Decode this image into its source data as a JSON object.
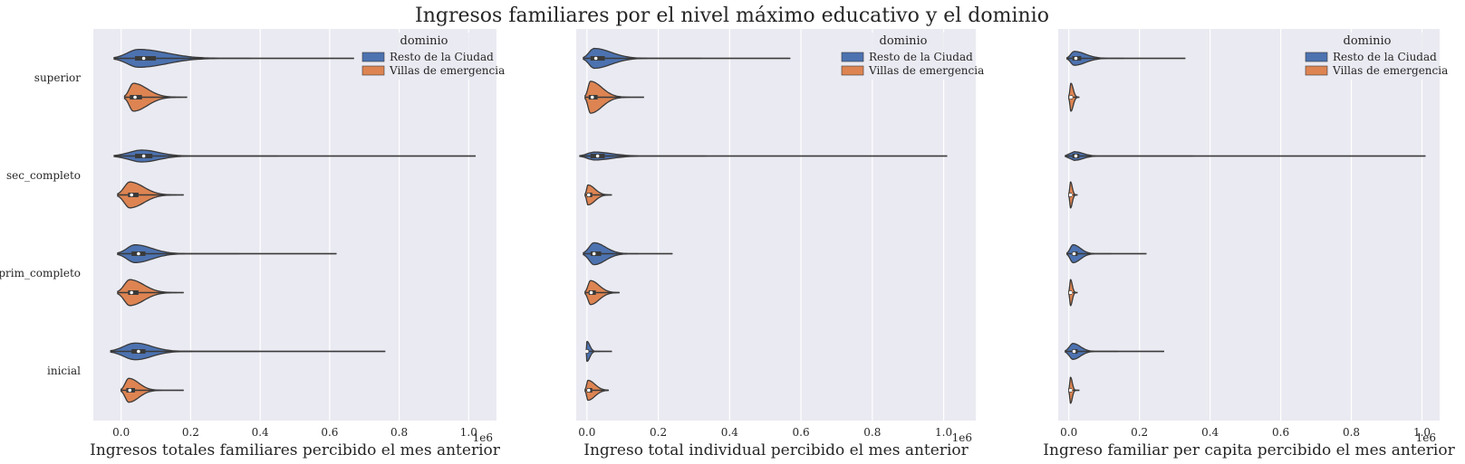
{
  "title": "Ingresos familiares por el nivel máximo educativo y el dominio",
  "colors": {
    "Resto de la Ciudad": "#4c72b0",
    "Villas de emergencia": "#dd8452",
    "background": "#eaeaf2",
    "grid": "#ffffff"
  },
  "chart_data": [
    {
      "type": "violin",
      "xlabel": "Ingresos totales familiares percibido el mes anterior",
      "x_offset_label": "1e6",
      "xlim": [
        -0.08,
        1.08
      ],
      "xticks": [
        0.0,
        0.2,
        0.4,
        0.6,
        0.8,
        1.0
      ],
      "xtick_labels": [
        "0.0",
        "0.2",
        "0.4",
        "0.6",
        "0.8",
        "1.0"
      ],
      "categories": [
        "superior",
        "sec_completo",
        "prim_completo",
        "inicial"
      ],
      "legend": {
        "title": "dominio",
        "entries": [
          "Resto de la Ciudad",
          "Villas de emergencia"
        ],
        "placement": "upper right"
      },
      "series": [
        {
          "name": "Resto de la Ciudad",
          "violins": [
            {
              "min": -0.02,
              "max": 0.67,
              "q1": 0.04,
              "median": 0.065,
              "q3": 0.1,
              "mode": 0.05,
              "maxwidth": 0.45
            },
            {
              "min": -0.02,
              "max": 1.02,
              "q1": 0.04,
              "median": 0.065,
              "q3": 0.09,
              "mode": 0.06,
              "maxwidth": 0.3
            },
            {
              "min": -0.01,
              "max": 0.62,
              "q1": 0.03,
              "median": 0.05,
              "q3": 0.07,
              "mode": 0.04,
              "maxwidth": 0.45
            },
            {
              "min": -0.03,
              "max": 0.76,
              "q1": 0.03,
              "median": 0.05,
              "q3": 0.07,
              "mode": 0.04,
              "maxwidth": 0.42
            }
          ]
        },
        {
          "name": "Villas de emergencia",
          "violins": [
            {
              "min": 0.01,
              "max": 0.19,
              "q1": 0.025,
              "median": 0.04,
              "q3": 0.06,
              "mode": 0.035,
              "maxwidth": 0.7
            },
            {
              "min": -0.01,
              "max": 0.18,
              "q1": 0.02,
              "median": 0.03,
              "q3": 0.05,
              "mode": 0.025,
              "maxwidth": 0.65
            },
            {
              "min": -0.01,
              "max": 0.18,
              "q1": 0.02,
              "median": 0.03,
              "q3": 0.05,
              "mode": 0.025,
              "maxwidth": 0.65
            },
            {
              "min": 0.0,
              "max": 0.18,
              "q1": 0.015,
              "median": 0.025,
              "q3": 0.04,
              "mode": 0.022,
              "maxwidth": 0.6
            }
          ]
        }
      ]
    },
    {
      "type": "violin",
      "xlabel": "Ingreso total individual percibido el mes anterior",
      "x_offset_label": "1e6",
      "xlim": [
        -0.03,
        1.09
      ],
      "xticks": [
        0.0,
        0.2,
        0.4,
        0.6,
        0.8,
        1.0
      ],
      "xtick_labels": [
        "0.0",
        "0.2",
        "0.4",
        "0.6",
        "0.8",
        "1.0"
      ],
      "categories": [
        "superior",
        "sec_completo",
        "prim_completo",
        "inicial"
      ],
      "legend": {
        "title": "dominio",
        "entries": [
          "Resto de la Ciudad",
          "Villas de emergencia"
        ],
        "placement": "upper right"
      },
      "series": [
        {
          "name": "Resto de la Ciudad",
          "violins": [
            {
              "min": -0.01,
              "max": 0.57,
              "q1": 0.01,
              "median": 0.025,
              "q3": 0.05,
              "mode": 0.02,
              "maxwidth": 0.5
            },
            {
              "min": -0.02,
              "max": 1.01,
              "q1": 0.01,
              "median": 0.03,
              "q3": 0.05,
              "mode": 0.02,
              "maxwidth": 0.2
            },
            {
              "min": -0.01,
              "max": 0.24,
              "q1": 0.01,
              "median": 0.02,
              "q3": 0.04,
              "mode": 0.02,
              "maxwidth": 0.55
            },
            {
              "min": -0.002,
              "max": 0.07,
              "q1": 0.0,
              "median": 0.0,
              "q3": 0.005,
              "mode": 0.0,
              "maxwidth": 0.5
            }
          ]
        },
        {
          "name": "Villas de emergencia",
          "violins": [
            {
              "min": -0.005,
              "max": 0.16,
              "q1": 0.005,
              "median": 0.015,
              "q3": 0.03,
              "mode": 0.01,
              "maxwidth": 0.8
            },
            {
              "min": -0.005,
              "max": 0.07,
              "q1": 0.0,
              "median": 0.005,
              "q3": 0.015,
              "mode": 0.003,
              "maxwidth": 0.5
            },
            {
              "min": -0.005,
              "max": 0.09,
              "q1": 0.005,
              "median": 0.012,
              "q3": 0.025,
              "mode": 0.01,
              "maxwidth": 0.6
            },
            {
              "min": -0.005,
              "max": 0.06,
              "q1": 0.0,
              "median": 0.005,
              "q3": 0.015,
              "mode": 0.003,
              "maxwidth": 0.5
            }
          ]
        }
      ]
    },
    {
      "type": "violin",
      "xlabel": "Ingreso familiar per capita percibido el mes anterior",
      "x_offset_label": "1e6",
      "xlim": [
        -0.03,
        1.05
      ],
      "xticks": [
        0.0,
        0.2,
        0.4,
        0.6,
        0.8,
        1.0
      ],
      "xtick_labels": [
        "0.0",
        "0.2",
        "0.4",
        "0.6",
        "0.8",
        "1.0"
      ],
      "categories": [
        "superior",
        "sec_completo",
        "prim_completo",
        "inicial"
      ],
      "legend": {
        "title": "dominio",
        "entries": [
          "Resto de la Ciudad",
          "Villas de emergencia"
        ],
        "placement": "upper right"
      },
      "series": [
        {
          "name": "Resto de la Ciudad",
          "violins": [
            {
              "min": -0.005,
              "max": 0.33,
              "q1": 0.01,
              "median": 0.02,
              "q3": 0.035,
              "mode": 0.015,
              "maxwidth": 0.35
            },
            {
              "min": -0.01,
              "max": 1.01,
              "q1": 0.01,
              "median": 0.02,
              "q3": 0.03,
              "mode": 0.015,
              "maxwidth": 0.22
            },
            {
              "min": -0.005,
              "max": 0.22,
              "q1": 0.01,
              "median": 0.015,
              "q3": 0.025,
              "mode": 0.012,
              "maxwidth": 0.45
            },
            {
              "min": -0.01,
              "max": 0.27,
              "q1": 0.01,
              "median": 0.015,
              "q3": 0.025,
              "mode": 0.012,
              "maxwidth": 0.4
            }
          ]
        },
        {
          "name": "Villas de emergencia",
          "violins": [
            {
              "min": 0.0,
              "max": 0.03,
              "q1": 0.004,
              "median": 0.006,
              "q3": 0.01,
              "mode": 0.006,
              "maxwidth": 0.7
            },
            {
              "min": 0.0,
              "max": 0.025,
              "q1": 0.003,
              "median": 0.005,
              "q3": 0.008,
              "mode": 0.005,
              "maxwidth": 0.65
            },
            {
              "min": 0.0,
              "max": 0.025,
              "q1": 0.003,
              "median": 0.005,
              "q3": 0.008,
              "mode": 0.005,
              "maxwidth": 0.65
            },
            {
              "min": 0.0,
              "max": 0.03,
              "q1": 0.003,
              "median": 0.005,
              "q3": 0.008,
              "mode": 0.005,
              "maxwidth": 0.65
            }
          ]
        }
      ]
    }
  ]
}
